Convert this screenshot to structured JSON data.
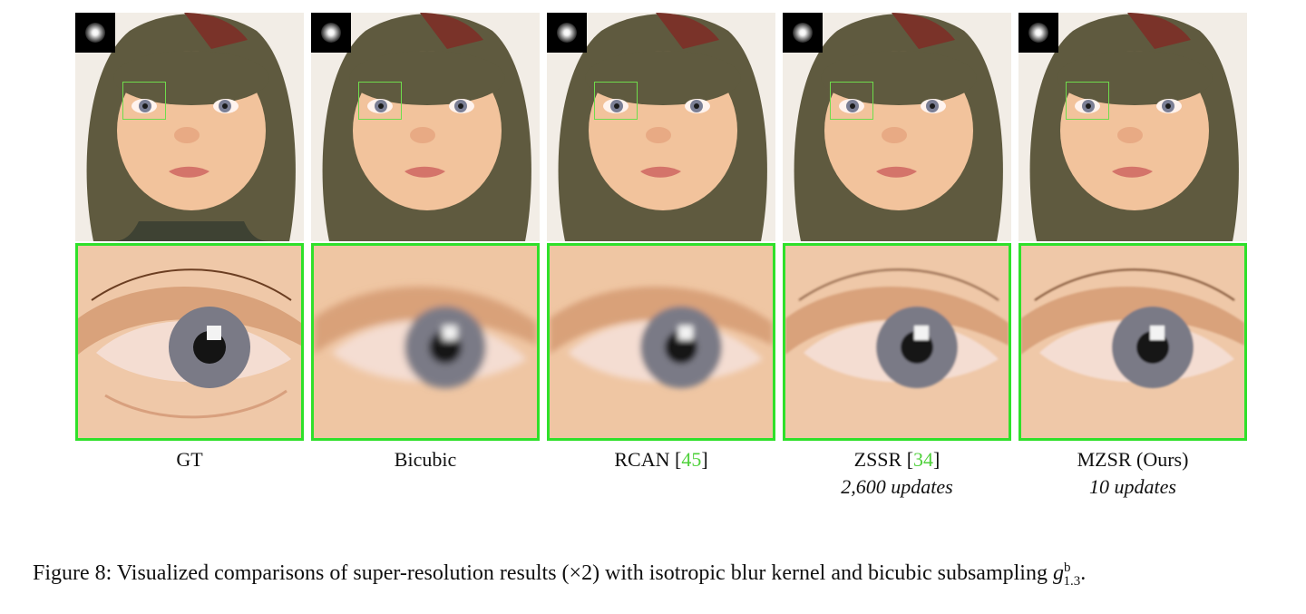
{
  "panels": [
    {
      "method": "GT",
      "ref": "",
      "suffix": "",
      "note": ""
    },
    {
      "method": "Bicubic",
      "ref": "",
      "suffix": "",
      "note": ""
    },
    {
      "method": "RCAN [",
      "ref": "45",
      "suffix": "]",
      "note": ""
    },
    {
      "method": "ZSSR [",
      "ref": "34",
      "suffix": "]",
      "note": "2,600 updates"
    },
    {
      "method": "MZSR (Ours)",
      "ref": "",
      "suffix": "",
      "note": "10 updates"
    }
  ],
  "caption": {
    "text": "Figure 8: Visualized comparisons of super-resolution results (×2) with isotropic blur kernel and bicubic subsampling ",
    "symbol": "g",
    "superscript": "b",
    "subscript": "1.3",
    "end": "."
  },
  "colors": {
    "roi_box": "#2fe02a",
    "reference_link": "#4fd13b"
  }
}
